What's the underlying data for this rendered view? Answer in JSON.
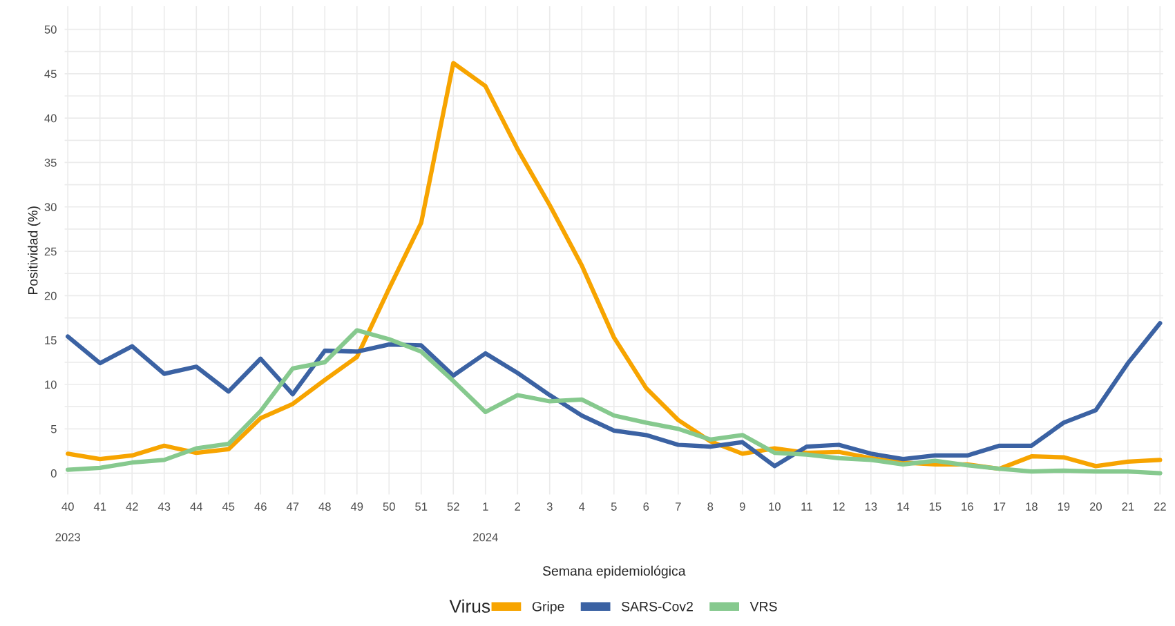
{
  "chart_data": {
    "type": "line",
    "xlabel": "Semana epidemiológica",
    "ylabel": "Positividad (%)",
    "legend_title": "Virus",
    "categories": [
      "40",
      "41",
      "42",
      "43",
      "44",
      "45",
      "46",
      "47",
      "48",
      "49",
      "50",
      "51",
      "52",
      "1",
      "2",
      "3",
      "4",
      "5",
      "6",
      "7",
      "8",
      "9",
      "10",
      "11",
      "12",
      "13",
      "14",
      "15",
      "16",
      "17",
      "18",
      "19",
      "20",
      "21",
      "22"
    ],
    "series": [
      {
        "name": "Gripe",
        "color": "#f7a400",
        "values": [
          2.2,
          1.6,
          2.0,
          3.1,
          2.3,
          2.7,
          6.2,
          7.8,
          10.5,
          13.1,
          20.8,
          28.2,
          46.2,
          43.6,
          36.5,
          30.2,
          23.4,
          15.3,
          9.6,
          6.0,
          3.6,
          2.2,
          2.8,
          2.3,
          2.4,
          1.7,
          1.2,
          1.0,
          1.0,
          0.5,
          1.9,
          1.8,
          0.8,
          1.3,
          1.5
        ]
      },
      {
        "name": "SARS-Cov2",
        "color": "#3b62a3",
        "values": [
          15.4,
          12.4,
          14.3,
          11.2,
          12.0,
          9.2,
          12.9,
          8.9,
          13.8,
          13.7,
          14.5,
          14.4,
          11.0,
          13.5,
          11.3,
          8.8,
          6.5,
          4.8,
          4.3,
          3.2,
          3.0,
          3.5,
          0.8,
          3.0,
          3.2,
          2.2,
          1.6,
          2.0,
          2.0,
          3.1,
          3.1,
          5.7,
          7.1,
          12.4,
          16.9
        ]
      },
      {
        "name": "VRS",
        "color": "#86c98e",
        "values": [
          0.4,
          0.6,
          1.2,
          1.5,
          2.8,
          3.3,
          7.0,
          11.8,
          12.5,
          16.1,
          15.1,
          13.7,
          10.4,
          6.9,
          8.8,
          8.1,
          8.3,
          6.5,
          5.7,
          5.0,
          3.8,
          4.3,
          2.3,
          2.1,
          1.7,
          1.5,
          1.0,
          1.4,
          0.9,
          0.5,
          0.2,
          0.3,
          0.2,
          0.2,
          0.0
        ]
      }
    ],
    "ylim": [
      -2.4,
      52.6
    ],
    "yticks": [
      0,
      5,
      10,
      15,
      20,
      25,
      30,
      35,
      40,
      45,
      50
    ],
    "annotations": [
      "2023",
      "2024"
    ],
    "grid": true,
    "legend": "bottom",
    "marker": "none",
    "line_style": "solid"
  }
}
